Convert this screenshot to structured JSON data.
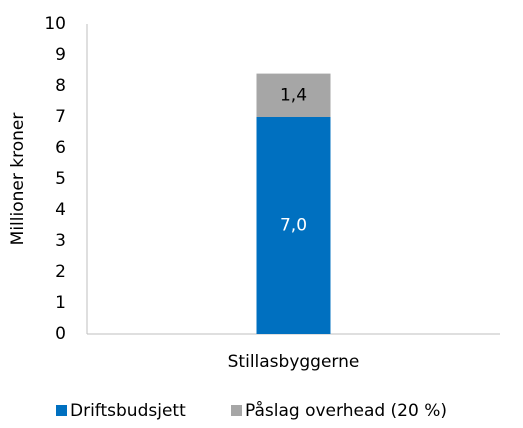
{
  "chart_data": {
    "type": "stacked_bar",
    "y_label": "Millioner kroner",
    "categories": [
      "Stillasbyggerne"
    ],
    "series": [
      {
        "name": "Driftsbudsjett",
        "color": "#0070c0",
        "values": [
          7.0
        ],
        "value_labels": [
          "7,0"
        ],
        "label_color": "#ffffff"
      },
      {
        "name": "Påslag overhead (20 %)",
        "color": "#a6a6a6",
        "values": [
          1.4
        ],
        "value_labels": [
          "1,4"
        ],
        "label_color": "#000000"
      }
    ],
    "ylim": [
      0,
      10
    ],
    "yticks": [
      0,
      1,
      2,
      3,
      4,
      5,
      6,
      7,
      8,
      9,
      10
    ],
    "grid": false,
    "legend": "bottom"
  }
}
